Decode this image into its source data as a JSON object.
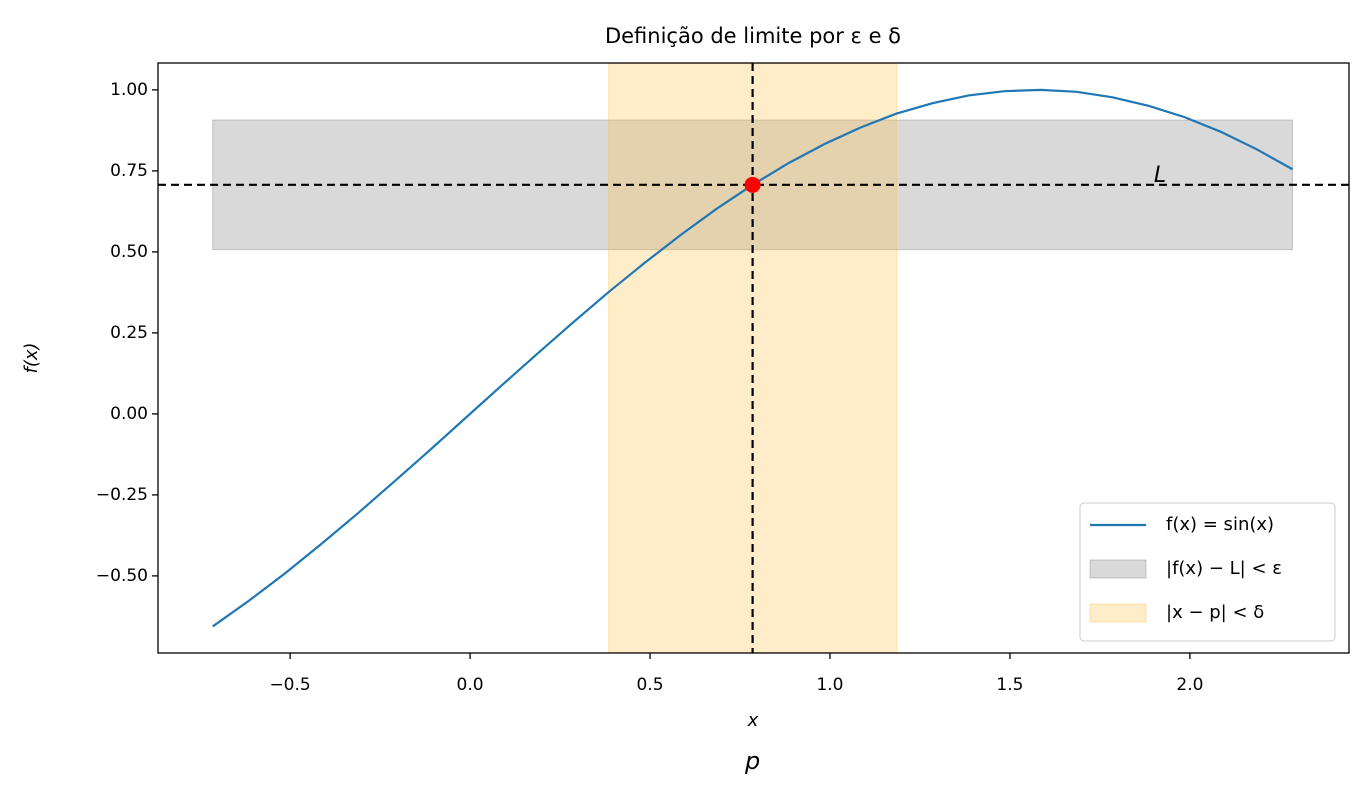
{
  "chart_data": {
    "type": "line",
    "title": "Definição de limite por ε e δ",
    "x_label": "x",
    "y_label": "f(x)",
    "x": [
      -0.715,
      -0.615,
      -0.515,
      -0.415,
      -0.315,
      -0.215,
      -0.115,
      -0.015,
      0.085,
      0.185,
      0.285,
      0.385,
      0.485,
      0.585,
      0.685,
      0.785,
      0.885,
      0.985,
      1.085,
      1.185,
      1.285,
      1.385,
      1.485,
      1.585,
      1.685,
      1.785,
      1.885,
      1.985,
      2.085,
      2.185,
      2.285
    ],
    "series": [
      {
        "name": "f(x) = sin(x)",
        "color": "#1f77b4",
        "values": [
          -0.656,
          -0.577,
          -0.493,
          -0.403,
          -0.31,
          -0.213,
          -0.115,
          -0.015,
          0.085,
          0.184,
          0.281,
          0.376,
          0.466,
          0.552,
          0.633,
          0.707,
          0.774,
          0.833,
          0.884,
          0.927,
          0.959,
          0.983,
          0.996,
          1.0,
          0.994,
          0.977,
          0.951,
          0.916,
          0.871,
          0.817,
          0.755
        ]
      }
    ],
    "bands": [
      {
        "name": "|f(x) − L| < ε",
        "color": "#808080",
        "x_range": [
          -0.715,
          2.285
        ],
        "y_range": [
          0.507,
          0.907
        ]
      },
      {
        "name": "|x − p| < δ",
        "color": "#ffc34d",
        "x_range": [
          0.385,
          1.185
        ]
      }
    ],
    "point": {
      "x": 0.785,
      "y": 0.707,
      "color": "#ff0000"
    },
    "annotations": [
      {
        "text": "L",
        "x": 1.9,
        "y": 0.735
      },
      {
        "text": "p",
        "x": 0.785
      }
    ],
    "xlim": [
      -0.867,
      2.442
    ],
    "ylim": [
      -0.738,
      1.083
    ],
    "xticks": [
      {
        "value": -0.5,
        "label": "−0.5"
      },
      {
        "value": 0.0,
        "label": "0.0"
      },
      0.5,
      {
        "value": 1.0,
        "label": "1.0"
      },
      1.5,
      {
        "value": 2.0,
        "label": "2.0"
      }
    ],
    "yticks": [
      {
        "value": -0.5,
        "label": "−0.50"
      },
      {
        "value": -0.25,
        "label": "−0.25"
      },
      {
        "value": 0.0,
        "label": "0.00"
      },
      0.25,
      {
        "value": 0.5,
        "label": "0.50"
      },
      0.75,
      {
        "value": 1.0,
        "label": "1.00"
      }
    ],
    "legend": "lower right",
    "grid": false
  }
}
